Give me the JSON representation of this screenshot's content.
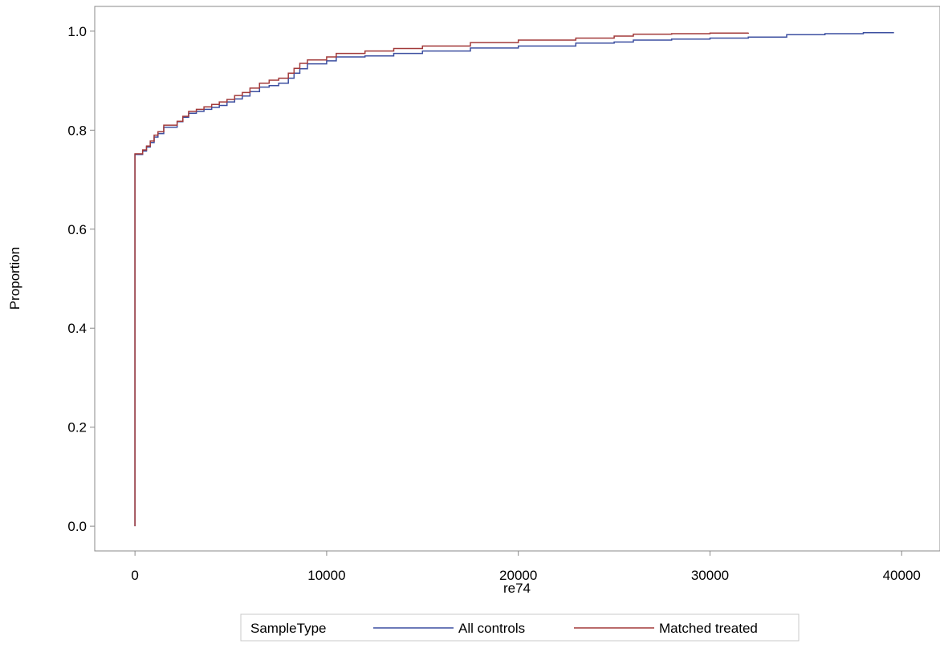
{
  "chart_data": {
    "type": "line",
    "step": true,
    "xlabel": "re74",
    "ylabel": "Proportion",
    "xlim": [
      -2100,
      42000
    ],
    "ylim": [
      -0.05,
      1.05
    ],
    "xticks": [
      0,
      10000,
      20000,
      30000,
      40000
    ],
    "yticks": [
      0.0,
      0.2,
      0.4,
      0.6,
      0.8,
      1.0
    ],
    "grid": false,
    "legend": {
      "title": "SampleType",
      "position": "bottom-center"
    },
    "series": [
      {
        "name": "All controls",
        "color": "#3c4fa0",
        "x": [
          0,
          0,
          400,
          600,
          800,
          1000,
          1200,
          1500,
          2200,
          2500,
          2800,
          3200,
          3600,
          4000,
          4400,
          4800,
          5200,
          5600,
          6000,
          6500,
          7000,
          7500,
          8000,
          8300,
          8600,
          9000,
          10000,
          10500,
          12000,
          13500,
          15000,
          17500,
          20000,
          23000,
          25000,
          26000,
          28000,
          30000,
          32000,
          34000,
          36000,
          38000,
          39600
        ],
        "values": [
          0.0,
          0.751,
          0.758,
          0.766,
          0.775,
          0.786,
          0.793,
          0.806,
          0.817,
          0.826,
          0.834,
          0.838,
          0.842,
          0.846,
          0.85,
          0.857,
          0.863,
          0.869,
          0.878,
          0.887,
          0.89,
          0.895,
          0.905,
          0.915,
          0.924,
          0.934,
          0.94,
          0.948,
          0.95,
          0.955,
          0.96,
          0.966,
          0.97,
          0.976,
          0.978,
          0.982,
          0.984,
          0.986,
          0.988,
          0.993,
          0.995,
          0.997,
          0.997
        ]
      },
      {
        "name": "Matched treated",
        "color": "#a23a3a",
        "x": [
          0,
          0,
          400,
          600,
          800,
          1000,
          1200,
          1500,
          2200,
          2500,
          2800,
          3200,
          3600,
          4000,
          4400,
          4800,
          5200,
          5600,
          6000,
          6500,
          7000,
          7500,
          8000,
          8300,
          8600,
          9000,
          10000,
          10500,
          12000,
          13500,
          15000,
          17500,
          20000,
          23000,
          25000,
          26000,
          28000,
          30000,
          32000
        ],
        "values": [
          0.0,
          0.752,
          0.76,
          0.768,
          0.778,
          0.79,
          0.797,
          0.81,
          0.818,
          0.828,
          0.838,
          0.842,
          0.847,
          0.852,
          0.857,
          0.862,
          0.87,
          0.876,
          0.885,
          0.895,
          0.901,
          0.905,
          0.915,
          0.925,
          0.935,
          0.942,
          0.948,
          0.955,
          0.96,
          0.965,
          0.97,
          0.977,
          0.982,
          0.986,
          0.99,
          0.994,
          0.995,
          0.996,
          0.997
        ]
      }
    ]
  }
}
